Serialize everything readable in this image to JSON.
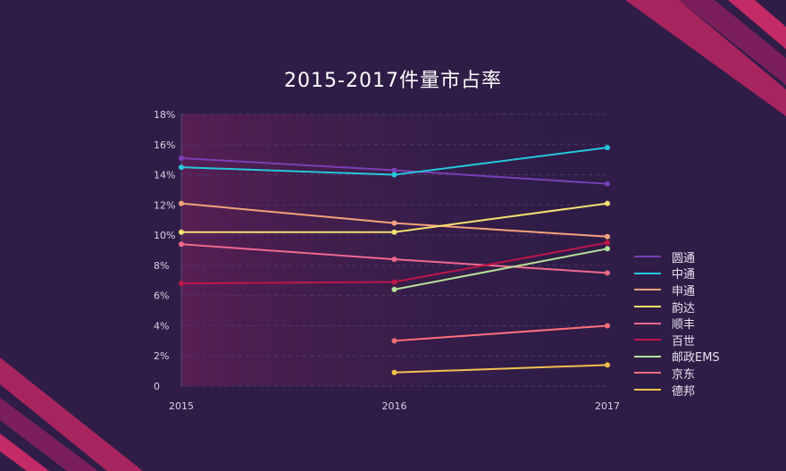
{
  "chart_data": {
    "type": "line",
    "title": "2015-2017件量市占率",
    "xlabel": "",
    "ylabel": "",
    "x": [
      "2015",
      "2016",
      "2017"
    ],
    "ylim": [
      0,
      18
    ],
    "yticks": [
      "0",
      "2%",
      "4%",
      "6%",
      "8%",
      "10%",
      "12%",
      "14%",
      "16%",
      "18%"
    ],
    "grid": true,
    "legend_position": "right",
    "series": [
      {
        "name": "圆通",
        "color": "#7a3fb6",
        "values": [
          15.1,
          14.3,
          13.4
        ]
      },
      {
        "name": "中通",
        "color": "#25c8dc",
        "values": [
          14.5,
          14.0,
          15.8
        ]
      },
      {
        "name": "申通",
        "color": "#f4a27d",
        "values": [
          12.1,
          10.8,
          9.9
        ]
      },
      {
        "name": "韵达",
        "color": "#f6e070",
        "values": [
          10.2,
          10.2,
          12.1
        ]
      },
      {
        "name": "顺丰",
        "color": "#f06a8a",
        "values": [
          9.4,
          8.4,
          7.5
        ]
      },
      {
        "name": "百世",
        "color": "#c0154a",
        "values": [
          6.8,
          6.9,
          9.5
        ]
      },
      {
        "name": "邮政EMS",
        "color": "#b6e39a",
        "values": [
          null,
          6.4,
          9.1
        ]
      },
      {
        "name": "京东",
        "color": "#ff6f7a",
        "values": [
          null,
          3.0,
          4.0
        ]
      },
      {
        "name": "德邦",
        "color": "#f3c14f",
        "values": [
          null,
          0.9,
          1.4
        ]
      }
    ]
  }
}
